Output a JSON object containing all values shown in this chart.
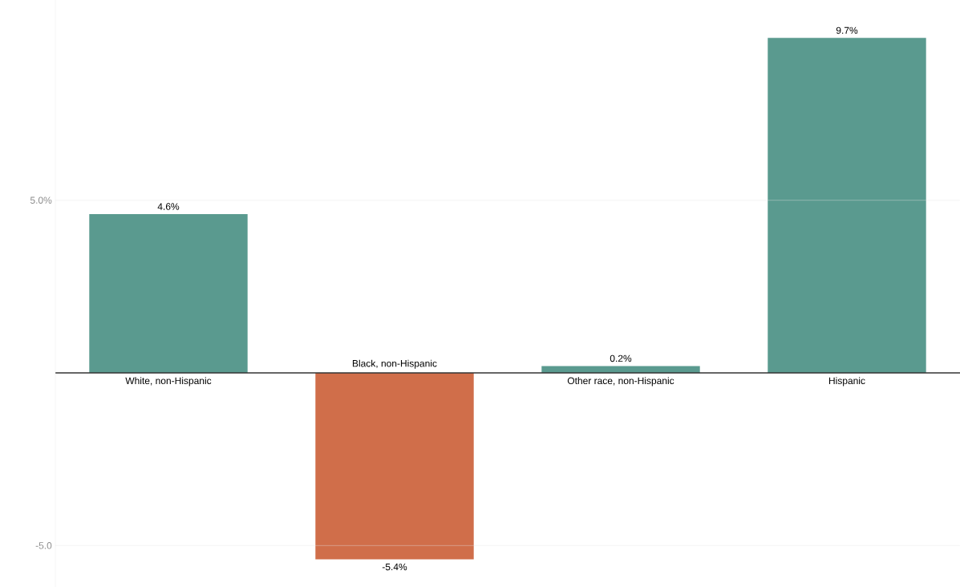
{
  "chart_data": {
    "type": "bar",
    "categories": [
      "White, non-Hispanic",
      "Black, non-Hispanic",
      "Other race, non-Hispanic",
      "Hispanic"
    ],
    "values": [
      4.6,
      -5.4,
      0.2,
      9.7
    ],
    "value_labels": [
      "4.6%",
      "-5.4%",
      "0.2%",
      "9.7%"
    ],
    "colors": [
      "#5a9a8f",
      "#d06e4a",
      "#5a9a8f",
      "#5a9a8f"
    ],
    "ylim": [
      -6.2,
      10.8
    ],
    "yticks": [
      {
        "value": -5,
        "label": "-5.0"
      },
      {
        "value": 5,
        "label": "5.0%"
      }
    ],
    "grid": "y"
  }
}
